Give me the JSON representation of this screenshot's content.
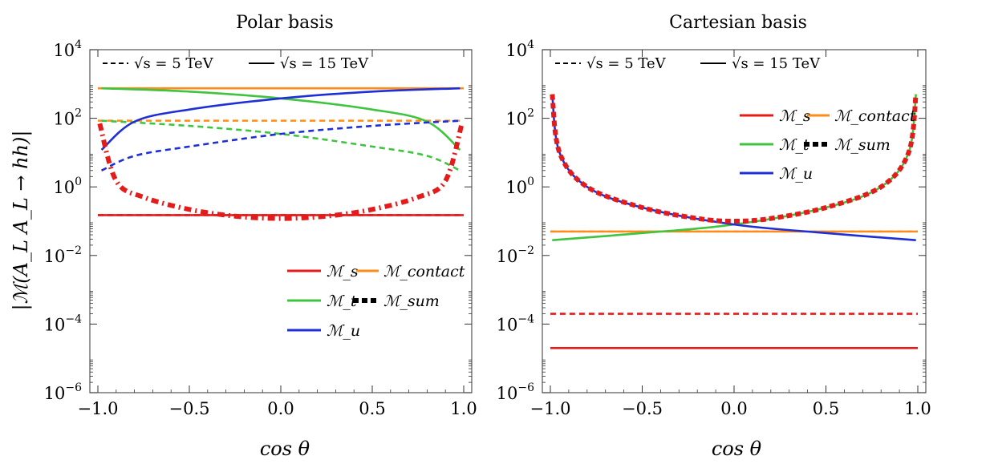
{
  "figure": {
    "ylabel": "|ℳ(A_L A_L → hh)|",
    "xlabel": "cos θ"
  },
  "energy_legend": {
    "dashed": "√s = 5 TeV",
    "solid": "√s = 15 TeV"
  },
  "colors": {
    "s": "#e41b1b",
    "contact": "#ff8c1a",
    "t": "#3ec43e",
    "u": "#1f2fd6",
    "sum": "#000000"
  },
  "chart_data": [
    {
      "type": "line",
      "title": "Polar basis",
      "xlabel": "cos θ",
      "ylabel": "|ℳ(A_L A_L → hh)|",
      "xlim": [
        -1.0,
        1.0
      ],
      "ylim": [
        1e-06,
        10000.0
      ],
      "yscale": "log",
      "xticks": [
        "−1.0",
        "−0.5",
        "0.0",
        "0.5",
        "1.0"
      ],
      "yticks": [
        "10^-6",
        "10^-4",
        "10^-2",
        "10^0",
        "10^2",
        "10^4"
      ],
      "legend": [
        "ℳ_s",
        "ℳ_contact",
        "ℳ_t",
        "ℳ_sum",
        "ℳ_u"
      ],
      "legend_position": "lower-right",
      "series": [
        {
          "name": "ℳ_s",
          "energy": "5 TeV",
          "x": [
            -1.0,
            1.0
          ],
          "y": [
            0.15,
            0.15
          ]
        },
        {
          "name": "ℳ_s",
          "energy": "15 TeV",
          "x": [
            -1.0,
            1.0
          ],
          "y": [
            0.15,
            0.15
          ]
        },
        {
          "name": "ℳ_contact",
          "energy": "5 TeV",
          "x": [
            -1.0,
            1.0
          ],
          "y": [
            85,
            85
          ]
        },
        {
          "name": "ℳ_contact",
          "energy": "15 TeV",
          "x": [
            -1.0,
            1.0
          ],
          "y": [
            750,
            750
          ]
        },
        {
          "name": "ℳ_t",
          "energy": "5 TeV",
          "x": [
            -0.98,
            -0.5,
            0.0,
            0.5,
            0.8,
            0.98
          ],
          "y": [
            85,
            60,
            35,
            15,
            8,
            3
          ]
        },
        {
          "name": "ℳ_t",
          "energy": "15 TeV",
          "x": [
            -0.98,
            -0.5,
            0.0,
            0.5,
            0.8,
            0.98
          ],
          "y": [
            750,
            600,
            380,
            180,
            80,
            12
          ]
        },
        {
          "name": "ℳ_u",
          "energy": "5 TeV",
          "x": [
            -0.98,
            -0.8,
            -0.5,
            0.0,
            0.5,
            0.98
          ],
          "y": [
            3,
            8,
            15,
            35,
            60,
            85
          ]
        },
        {
          "name": "ℳ_u",
          "energy": "15 TeV",
          "x": [
            -0.98,
            -0.8,
            -0.5,
            0.0,
            0.5,
            0.98
          ],
          "y": [
            12,
            80,
            180,
            380,
            600,
            750
          ]
        },
        {
          "name": "ℳ_sum",
          "energy": "5 TeV",
          "x": [
            -0.99,
            -0.9,
            -0.75,
            -0.5,
            -0.25,
            0.0,
            0.25,
            0.5,
            0.75,
            0.9,
            0.99
          ],
          "y": [
            70,
            1.5,
            0.5,
            0.22,
            0.14,
            0.12,
            0.14,
            0.22,
            0.5,
            1.5,
            70
          ]
        }
      ]
    },
    {
      "type": "line",
      "title": "Cartesian basis",
      "xlabel": "cos θ",
      "ylabel": "",
      "xlim": [
        -1.0,
        1.0
      ],
      "ylim": [
        1e-06,
        10000.0
      ],
      "yscale": "log",
      "xticks": [
        "−1.0",
        "−0.5",
        "0.0",
        "0.5",
        "1.0"
      ],
      "yticks": [
        "10^-6",
        "10^-4",
        "10^-2",
        "10^0",
        "10^2",
        "10^4"
      ],
      "legend": [
        "ℳ_s",
        "ℳ_contact",
        "ℳ_t",
        "ℳ_sum",
        "ℳ_u"
      ],
      "legend_position": "upper-right",
      "series": [
        {
          "name": "ℳ_s",
          "energy": "5 TeV",
          "x": [
            -1.0,
            1.0
          ],
          "y": [
            0.0002,
            0.0002
          ]
        },
        {
          "name": "ℳ_s",
          "energy": "15 TeV",
          "x": [
            -1.0,
            1.0
          ],
          "y": [
            2e-05,
            2e-05
          ]
        },
        {
          "name": "ℳ_contact",
          "energy": "5 TeV",
          "x": [
            -1.0,
            1.0
          ],
          "y": [
            0.05,
            0.05
          ]
        },
        {
          "name": "ℳ_contact",
          "energy": "15 TeV",
          "x": [
            -1.0,
            1.0
          ],
          "y": [
            0.05,
            0.05
          ]
        },
        {
          "name": "ℳ_t",
          "energy": "15 TeV",
          "x": [
            -0.99,
            -0.5,
            0.0,
            0.5,
            0.8,
            0.95,
            0.99
          ],
          "y": [
            0.028,
            0.045,
            0.08,
            0.25,
            1.0,
            10,
            500
          ]
        },
        {
          "name": "ℳ_u",
          "energy": "15 TeV",
          "x": [
            -0.99,
            -0.95,
            -0.8,
            -0.5,
            0.0,
            0.5,
            0.99
          ],
          "y": [
            500,
            10,
            1.0,
            0.25,
            0.08,
            0.045,
            0.028
          ]
        },
        {
          "name": "ℳ_sum",
          "energy": "15 TeV",
          "x": [
            -0.99,
            -0.95,
            -0.8,
            -0.5,
            -0.2,
            0.0,
            0.2,
            0.5,
            0.8,
            0.95,
            0.99
          ],
          "y": [
            500,
            10,
            1.0,
            0.25,
            0.12,
            0.1,
            0.12,
            0.25,
            1.0,
            10,
            500
          ]
        }
      ]
    }
  ]
}
